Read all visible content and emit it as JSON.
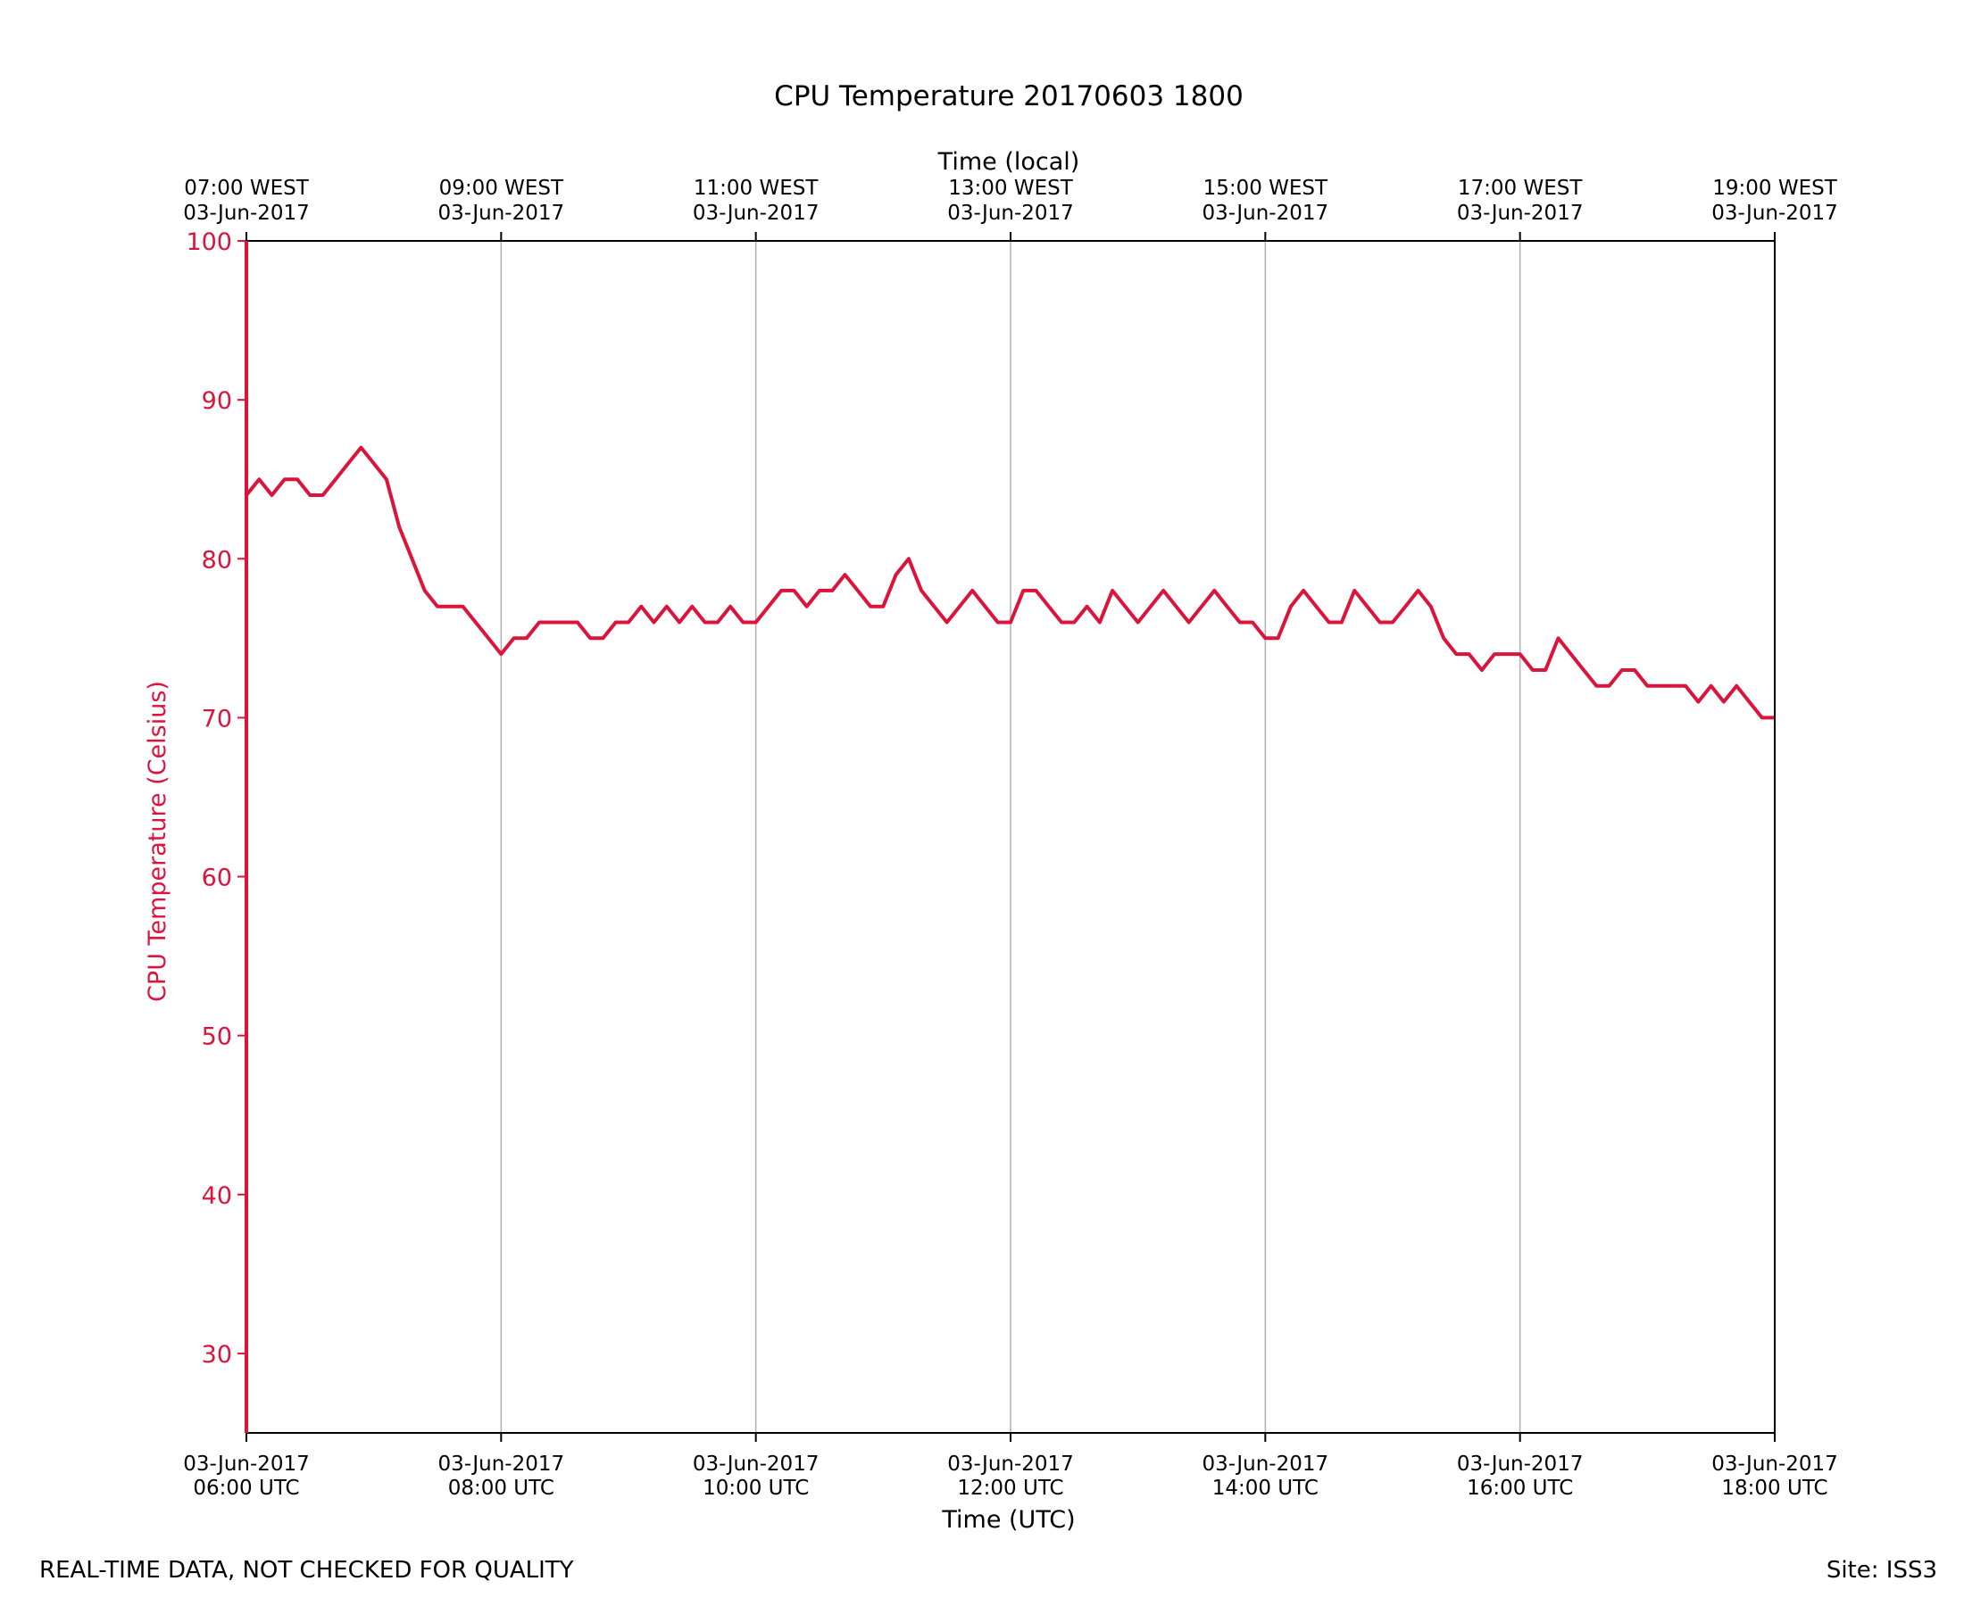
{
  "chart_data": {
    "type": "line",
    "title": "CPU Temperature 20170603 1800",
    "xlabel": "Time (UTC)",
    "top_xlabel": "Time (local)",
    "ylabel": "CPU Temperature (Celsius)",
    "ylim": [
      25,
      100
    ],
    "y_ticks": [
      "30",
      "40",
      "50",
      "60",
      "70",
      "80",
      "90",
      "100"
    ],
    "xlim_hours": [
      6,
      18
    ],
    "grid": "vertical",
    "colors": {
      "series": "#dc143c",
      "grid": "#b0b0b0",
      "axis": "#000000"
    },
    "bottom_ticks": [
      {
        "hour": 6,
        "line1": "03-Jun-2017",
        "line2": "06:00 UTC"
      },
      {
        "hour": 8,
        "line1": "03-Jun-2017",
        "line2": "08:00 UTC"
      },
      {
        "hour": 10,
        "line1": "03-Jun-2017",
        "line2": "10:00 UTC"
      },
      {
        "hour": 12,
        "line1": "03-Jun-2017",
        "line2": "12:00 UTC"
      },
      {
        "hour": 14,
        "line1": "03-Jun-2017",
        "line2": "14:00 UTC"
      },
      {
        "hour": 16,
        "line1": "03-Jun-2017",
        "line2": "16:00 UTC"
      },
      {
        "hour": 18,
        "line1": "03-Jun-2017",
        "line2": "18:00 UTC"
      }
    ],
    "top_ticks": [
      {
        "hour": 6,
        "line1": "07:00 WEST",
        "line2": "03-Jun-2017"
      },
      {
        "hour": 8,
        "line1": "09:00 WEST",
        "line2": "03-Jun-2017"
      },
      {
        "hour": 10,
        "line1": "11:00 WEST",
        "line2": "03-Jun-2017"
      },
      {
        "hour": 12,
        "line1": "13:00 WEST",
        "line2": "03-Jun-2017"
      },
      {
        "hour": 14,
        "line1": "15:00 WEST",
        "line2": "03-Jun-2017"
      },
      {
        "hour": 16,
        "line1": "17:00 WEST",
        "line2": "03-Jun-2017"
      },
      {
        "hour": 18,
        "line1": "19:00 WEST",
        "line2": "03-Jun-2017"
      }
    ],
    "series": [
      {
        "name": "CPU Temperature",
        "x_hours": [
          6.0,
          6.1,
          6.2,
          6.3,
          6.4,
          6.5,
          6.6,
          6.7,
          6.8,
          6.9,
          7.0,
          7.1,
          7.2,
          7.3,
          7.4,
          7.5,
          7.6,
          7.7,
          7.8,
          7.9,
          8.0,
          8.1,
          8.2,
          8.3,
          8.4,
          8.5,
          8.6,
          8.7,
          8.8,
          8.9,
          9.0,
          9.1,
          9.2,
          9.3,
          9.4,
          9.5,
          9.6,
          9.7,
          9.8,
          9.9,
          10.0,
          10.1,
          10.2,
          10.3,
          10.4,
          10.5,
          10.6,
          10.7,
          10.8,
          10.9,
          11.0,
          11.1,
          11.2,
          11.3,
          11.4,
          11.5,
          11.6,
          11.7,
          11.8,
          11.9,
          12.0,
          12.1,
          12.2,
          12.3,
          12.4,
          12.5,
          12.6,
          12.7,
          12.8,
          12.9,
          13.0,
          13.1,
          13.2,
          13.3,
          13.4,
          13.5,
          13.6,
          13.7,
          13.8,
          13.9,
          14.0,
          14.1,
          14.2,
          14.3,
          14.4,
          14.5,
          14.6,
          14.7,
          14.8,
          14.9,
          15.0,
          15.1,
          15.2,
          15.3,
          15.4,
          15.5,
          15.6,
          15.7,
          15.8,
          15.9,
          16.0,
          16.1,
          16.2,
          16.3,
          16.4,
          16.5,
          16.6,
          16.7,
          16.8,
          16.9,
          17.0,
          17.1,
          17.2,
          17.3,
          17.4,
          17.5,
          17.6,
          17.7,
          17.8,
          17.9,
          18.0
        ],
        "values": [
          84,
          85,
          84,
          85,
          85,
          84,
          84,
          85,
          86,
          87,
          86,
          85,
          82,
          80,
          78,
          77,
          77,
          77,
          76,
          75,
          74,
          75,
          75,
          76,
          76,
          76,
          76,
          75,
          75,
          76,
          76,
          77,
          76,
          77,
          76,
          77,
          76,
          76,
          77,
          76,
          76,
          77,
          78,
          78,
          77,
          78,
          78,
          79,
          78,
          77,
          77,
          79,
          80,
          78,
          77,
          76,
          77,
          78,
          77,
          76,
          76,
          78,
          78,
          77,
          76,
          76,
          77,
          76,
          78,
          77,
          76,
          77,
          78,
          77,
          76,
          77,
          78,
          77,
          76,
          76,
          75,
          75,
          77,
          78,
          77,
          76,
          76,
          78,
          77,
          76,
          76,
          77,
          78,
          77,
          75,
          74,
          74,
          73,
          74,
          74,
          74,
          73,
          73,
          75,
          74,
          73,
          72,
          72,
          73,
          73,
          72,
          72,
          72,
          72,
          71,
          72,
          71,
          72,
          71,
          70,
          70
        ]
      }
    ]
  },
  "footer": {
    "left_note": "REAL-TIME DATA, NOT CHECKED FOR QUALITY",
    "site": "Site: ISS3"
  }
}
